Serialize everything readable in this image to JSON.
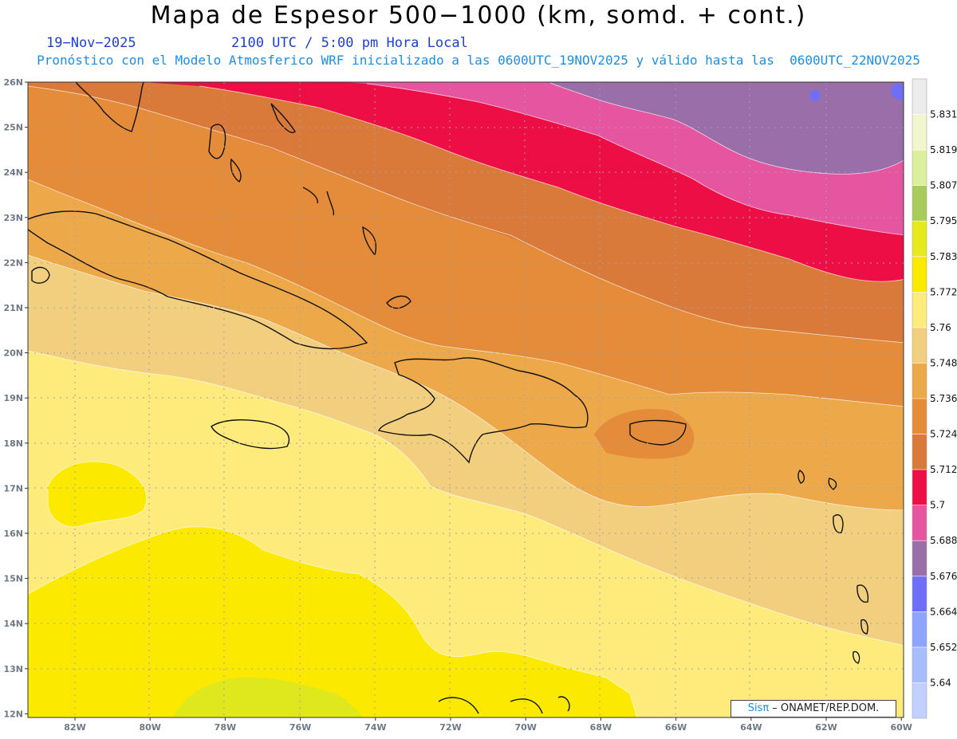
{
  "header": {
    "title": "Mapa de Espesor 500−1000 (km, somd. + cont.)",
    "date": "19−Nov−2025",
    "time": "2100 UTC / 5:00 pm Hora Local",
    "subtitle": "Pronóstico con el Modelo Atmosferico WRF inicializado a las 0600UTC_19NOV2025 y válido hasta las  0600UTC_22NOV2025"
  },
  "axes": {
    "lat_labels": [
      "26N",
      "25N",
      "24N",
      "23N",
      "22N",
      "21N",
      "20N",
      "19N",
      "18N",
      "17N",
      "16N",
      "15N",
      "14N",
      "13N",
      "12N"
    ],
    "lon_labels": [
      "82W",
      "80W",
      "78W",
      "76W",
      "74W",
      "72W",
      "70W",
      "68W",
      "66W",
      "64W",
      "62W",
      "60W"
    ]
  },
  "legend": {
    "levels": [
      "5.831",
      "5.819",
      "5.807",
      "5.795",
      "5.783",
      "5.772",
      "5.76",
      "5.748",
      "5.736",
      "5.724",
      "5.712",
      "5.7",
      "5.688",
      "5.676",
      "5.664",
      "5.652",
      "5.64"
    ],
    "colors": [
      "#ececec",
      "#f2f6cc",
      "#dcef9c",
      "#a8cc5c",
      "#e6ea1c",
      "#fbe900",
      "#feeb7c",
      "#f2cf7e",
      "#eda84a",
      "#e48c3a",
      "#d97a3a",
      "#ee0e46",
      "#e656a0",
      "#9a6ea8",
      "#6e6ef8",
      "#8ea4ff",
      "#a6beff",
      "#c2d0ff"
    ]
  },
  "credit": {
    "brand": "Sisπ",
    "text": " – ONAMET/REP.DOM."
  }
}
